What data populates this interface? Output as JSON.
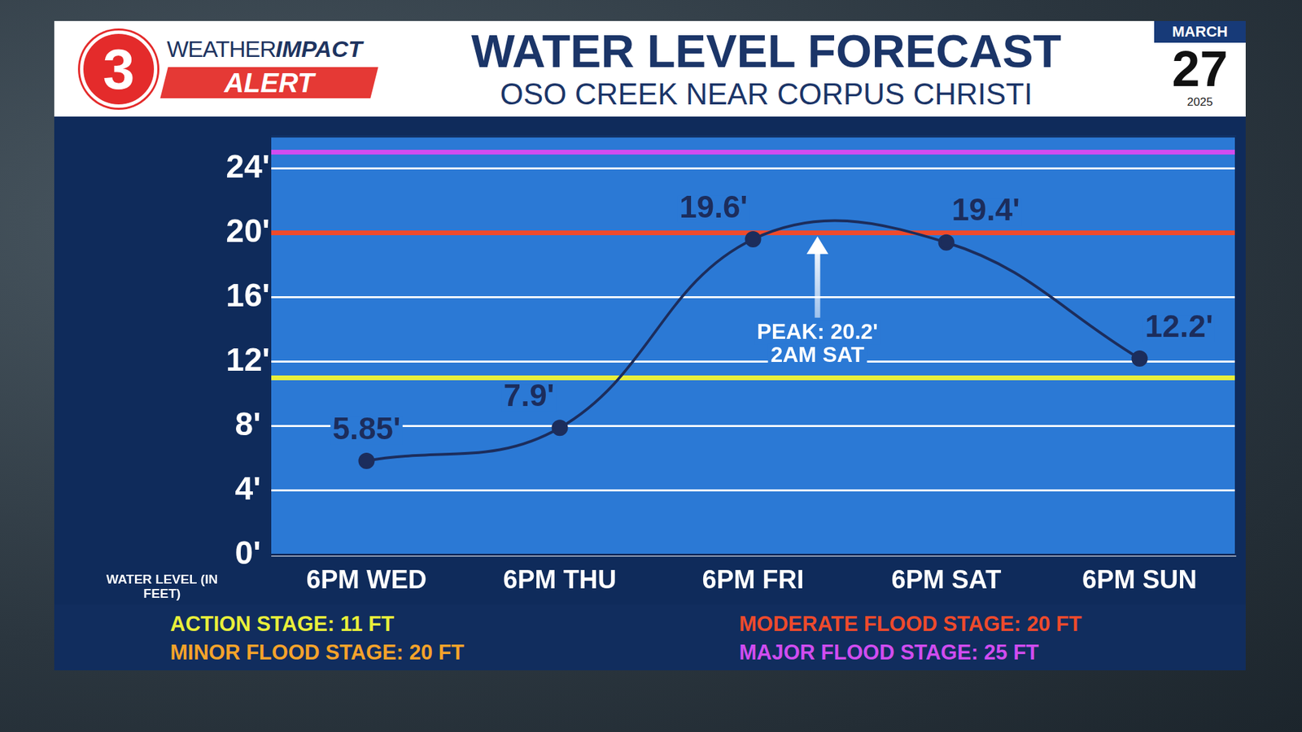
{
  "header": {
    "logo": "3",
    "brand_light": "WEATHER",
    "brand_bold": "IMPACT",
    "alert": "ALERT",
    "month": "MARCH",
    "day": "27",
    "year": "2025"
  },
  "chart_data": {
    "type": "line",
    "title": "WATER LEVEL FORECAST",
    "subtitle": "OSO CREEK NEAR CORPUS CHRISTI",
    "y_label": "WATER LEVEL (IN FEET)",
    "categories": [
      "6PM WED",
      "6PM THU",
      "6PM FRI",
      "6PM SAT",
      "6PM SUN"
    ],
    "values": [
      5.85,
      7.9,
      19.6,
      19.4,
      12.2
    ],
    "value_labels": [
      "5.85'",
      "7.9'",
      "19.6'",
      "19.4'",
      "12.2'"
    ],
    "data_labels": true,
    "color": "#1c2d5c",
    "marker": "circle",
    "ylim": [
      0,
      26
    ],
    "yticks": [
      {
        "value": 0,
        "label": "0'"
      },
      {
        "value": 4,
        "label": "4'"
      },
      {
        "value": 8,
        "label": "8'"
      },
      {
        "value": 12,
        "label": "12'"
      },
      {
        "value": 16,
        "label": "16'"
      },
      {
        "value": 20,
        "label": "20'"
      },
      {
        "value": 24,
        "label": "24'"
      }
    ],
    "grid": true,
    "annotations": [
      {
        "text": "PEAK: 20.2'",
        "subtext": "2AM SAT",
        "value": 20.2
      }
    ],
    "thresholds": [
      {
        "label": "ACTION STAGE: 11 FT",
        "value": 11,
        "color": "#e9ef3a"
      },
      {
        "label": "MINOR FLOOD STAGE: 20 FT",
        "value": 20,
        "color": "#f5a32a"
      },
      {
        "label": "MODERATE FLOOD STAGE: 20 FT",
        "value": 20,
        "color": "#ee4a2c"
      },
      {
        "label": "MAJOR FLOOD STAGE: 25 FT",
        "value": 25,
        "color": "#d04cf0"
      }
    ]
  }
}
